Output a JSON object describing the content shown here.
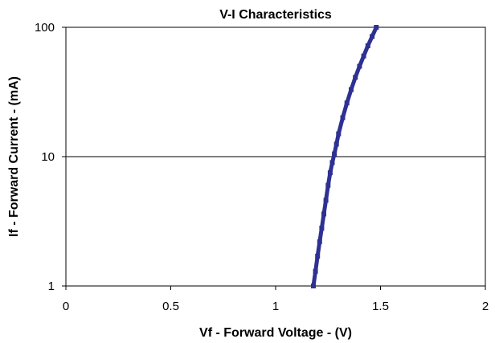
{
  "chart_data": {
    "type": "line",
    "title": "V-I Characteristics",
    "xlabel": "Vf - Forward Voltage - (V)",
    "ylabel": "If - Forward Current - (mA)",
    "xlim": [
      0,
      2
    ],
    "ylim": [
      1,
      100
    ],
    "yscale": "log",
    "x_ticks": [
      0,
      0.5,
      1,
      1.5,
      2
    ],
    "x_tick_labels": [
      "0",
      "0.5",
      "1",
      "1.5",
      "2"
    ],
    "y_ticks": [
      1,
      10,
      100
    ],
    "y_tick_labels": [
      "1",
      "10",
      "100"
    ],
    "grid": {
      "x": false,
      "y": true
    },
    "legend": "none",
    "series": [
      {
        "color": "#2e3192",
        "x": [
          1.18,
          1.19,
          1.2,
          1.21,
          1.22,
          1.23,
          1.24,
          1.25,
          1.26,
          1.27,
          1.28,
          1.29,
          1.3,
          1.32,
          1.34,
          1.36,
          1.38,
          1.4,
          1.42,
          1.44,
          1.46,
          1.48
        ],
        "y": [
          1,
          1.3,
          1.7,
          2.2,
          2.8,
          3.6,
          4.6,
          6.0,
          7.5,
          9.0,
          10.5,
          12.5,
          15,
          20,
          26,
          33,
          41,
          50,
          60,
          72,
          85,
          100
        ]
      }
    ]
  }
}
